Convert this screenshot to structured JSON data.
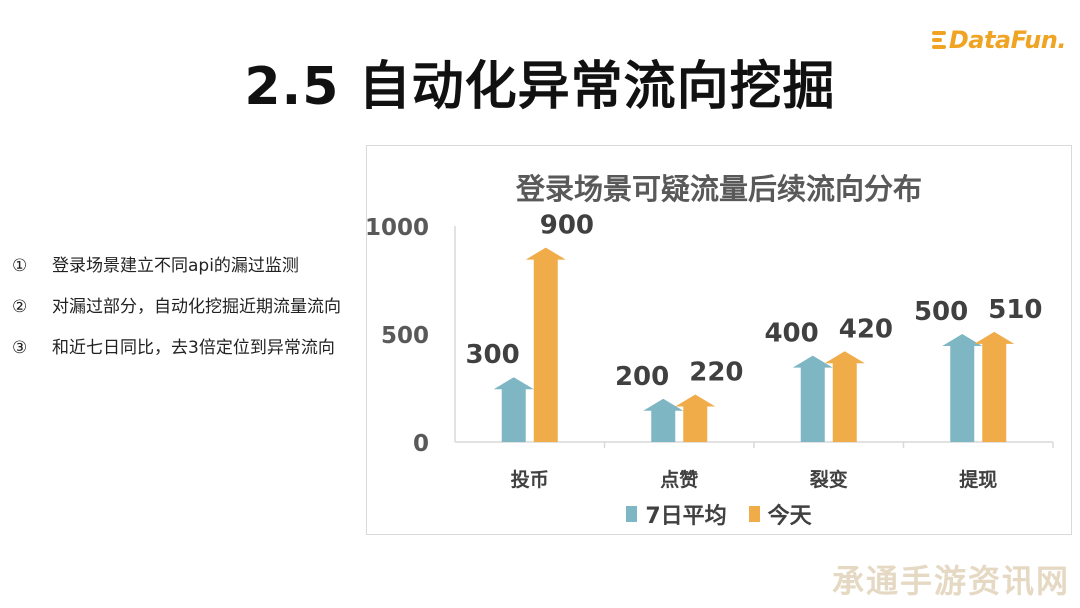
{
  "logo": {
    "text": "DataFun."
  },
  "page_title": "2.5 自动化异常流向挖掘",
  "bullets": [
    {
      "num": "①",
      "text": "登录场景建立不同api的漏过监测"
    },
    {
      "num": "②",
      "text": "对漏过部分，自动化挖掘近期流量流向"
    },
    {
      "num": "③",
      "text": "和近七日同比，去3倍定位到异常流向"
    }
  ],
  "colors": {
    "series_avg": "#7fb6c4",
    "series_today": "#f0ac48",
    "grid": "#d9d9d9"
  },
  "chart_data": {
    "type": "bar",
    "title": "登录场景可疑流量后续流向分布",
    "categories": [
      "投币",
      "点赞",
      "裂变",
      "提现"
    ],
    "series": [
      {
        "name": "7日平均",
        "values": [
          300,
          200,
          400,
          500
        ]
      },
      {
        "name": "今天",
        "values": [
          900,
          220,
          420,
          510
        ]
      }
    ],
    "yticks": [
      0,
      500,
      1000
    ],
    "ylim": [
      0,
      1000
    ],
    "grid": false,
    "legend_position": "bottom",
    "bar_shape": "arrow"
  },
  "watermark": "承通手游资讯网"
}
